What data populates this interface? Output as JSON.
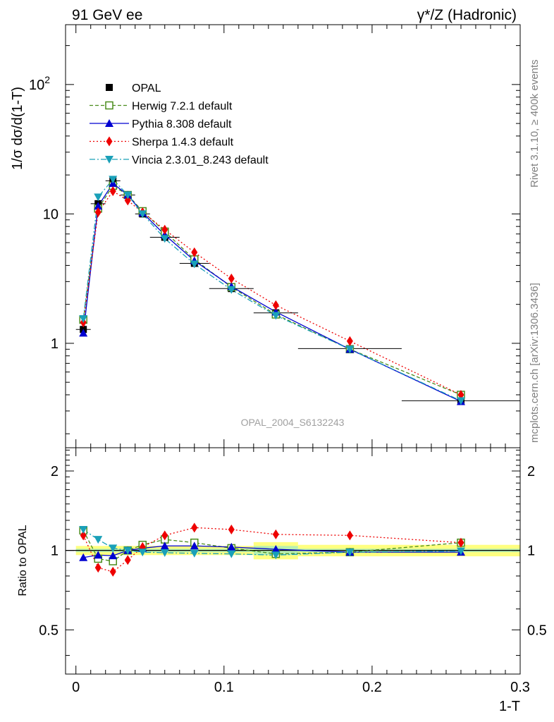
{
  "header": {
    "left": "91 GeV ee",
    "right": "γ*/Z (Hadronic)"
  },
  "side_labels": {
    "rivet": "Rivet 3.1.10, ≥ 400k events",
    "mcplots": "mcplots.cern.ch [arXiv:1306.3436]"
  },
  "watermark": "OPAL_2004_S6132243",
  "chart_data": [
    {
      "type": "line",
      "scale": "log",
      "ylabel": "1/σ dσ/d(1-T)",
      "xlim": [
        -0.007,
        0.3
      ],
      "ylim": [
        0.156,
        290
      ],
      "yticks": [
        {
          "v": 1,
          "label": "1"
        },
        {
          "v": 10,
          "label": "10"
        },
        {
          "v": 100,
          "label": "10",
          "sup": "2"
        }
      ],
      "legend_position": "top-left",
      "data": {
        "name": "OPAL",
        "color": "#000000",
        "x": [
          0.005,
          0.015,
          0.025,
          0.035,
          0.045,
          0.06,
          0.08,
          0.105,
          0.135,
          0.185,
          0.26
        ],
        "y": [
          1.28,
          12.0,
          18.0,
          14.0,
          10.0,
          6.6,
          4.15,
          2.65,
          1.72,
          0.91,
          0.36
        ],
        "xerr": [
          0.005,
          0.005,
          0.005,
          0.005,
          0.005,
          0.01,
          0.01,
          0.015,
          0.015,
          0.035,
          0.04
        ]
      },
      "series": [
        {
          "name": "Herwig 7.2.1 default",
          "color": "#4a8c1c",
          "marker": "open-square",
          "dash": "5,3",
          "y": [
            1.52,
            11.0,
            16.5,
            14.0,
            10.5,
            7.3,
            4.45,
            2.72,
            1.67,
            0.9,
            0.4
          ]
        },
        {
          "name": "Pythia 8.308 default",
          "color": "#0000d0",
          "marker": "triangle-up",
          "dash": "",
          "y": [
            1.2,
            11.5,
            17.2,
            14.0,
            10.2,
            6.9,
            4.35,
            2.75,
            1.75,
            0.9,
            0.355
          ]
        },
        {
          "name": "Sherpa 1.4.3 default",
          "color": "#ee0000",
          "marker": "diamond",
          "dash": "2,3",
          "y": [
            1.45,
            10.3,
            15.0,
            12.7,
            10.3,
            7.55,
            5.05,
            3.17,
            1.97,
            1.04,
            0.4
          ]
        },
        {
          "name": "Vincia 2.3.01_8.243 default",
          "color": "#1aa0b8",
          "marker": "triangle-down",
          "dash": "8,3,2,3",
          "y": [
            1.55,
            13.5,
            18.5,
            14.0,
            10.0,
            6.45,
            4.1,
            2.6,
            1.64,
            0.9,
            0.36
          ]
        }
      ]
    },
    {
      "type": "line",
      "scale": "log",
      "ylabel": "Ratio to OPAL",
      "xlabel": "1-T",
      "xlim": [
        -0.007,
        0.3
      ],
      "ylim": [
        0.34,
        2.45
      ],
      "yticks": [
        {
          "v": 0.5,
          "label": "0.5"
        },
        {
          "v": 1,
          "label": "1"
        },
        {
          "v": 2,
          "label": "2"
        }
      ],
      "xticks": [
        {
          "v": 0,
          "label": "0"
        },
        {
          "v": 0.1,
          "label": "0.1"
        },
        {
          "v": 0.2,
          "label": "0.2"
        },
        {
          "v": 0.3,
          "label": "0.3"
        }
      ],
      "uncertainty_bands": [
        {
          "x0": 0.0,
          "x1": 0.12,
          "stat": [
            0.985,
            1.015
          ],
          "total": [
            0.96,
            1.04
          ]
        },
        {
          "x0": 0.12,
          "x1": 0.15,
          "stat": [
            0.96,
            1.04
          ],
          "total": [
            0.925,
            1.075
          ]
        },
        {
          "x0": 0.15,
          "x1": 0.3,
          "stat": [
            0.985,
            1.015
          ],
          "total": [
            0.95,
            1.05
          ]
        }
      ],
      "series": [
        {
          "name": "Herwig 7.2.1 default",
          "color": "#4a8c1c",
          "marker": "open-square",
          "dash": "5,3",
          "y": [
            1.19,
            0.93,
            0.91,
            1.0,
            1.05,
            1.1,
            1.07,
            1.02,
            0.97,
            0.985,
            1.07
          ]
        },
        {
          "name": "Pythia 8.308 default",
          "color": "#0000d0",
          "marker": "triangle-up",
          "dash": "",
          "y": [
            0.94,
            0.96,
            0.955,
            1.0,
            1.02,
            1.04,
            1.04,
            1.03,
            1.01,
            0.985,
            0.985
          ]
        },
        {
          "name": "Sherpa 1.4.3 default",
          "color": "#ee0000",
          "marker": "diamond",
          "dash": "2,3",
          "y": [
            1.14,
            0.86,
            0.83,
            0.92,
            1.03,
            1.14,
            1.22,
            1.2,
            1.15,
            1.14,
            1.07
          ]
        },
        {
          "name": "Vincia 2.3.01_8.243 default",
          "color": "#1aa0b8",
          "marker": "triangle-down",
          "dash": "8,3,2,3",
          "y": [
            1.2,
            1.1,
            1.02,
            1.0,
            0.985,
            0.98,
            0.975,
            0.97,
            0.96,
            0.985,
            0.995
          ]
        }
      ]
    }
  ]
}
